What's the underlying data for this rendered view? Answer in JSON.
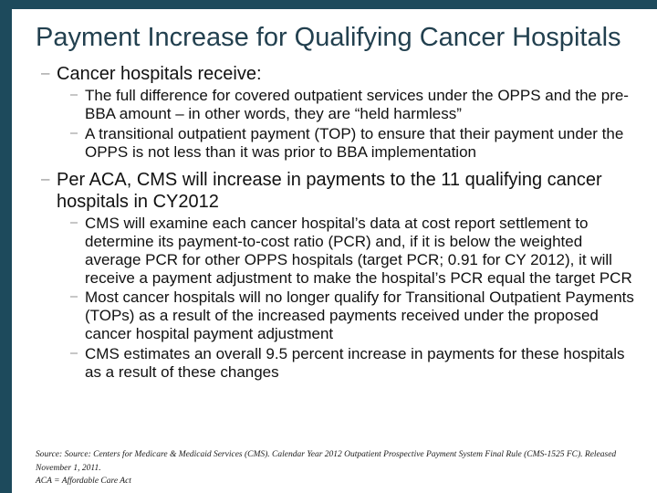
{
  "slide": {
    "title": "Payment Increase for Qualifying Cancer Hospitals",
    "bullet_char": "–",
    "bullets": [
      {
        "level": 1,
        "text": "Cancer hospitals receive:"
      },
      {
        "level": 2,
        "text": "The full difference for covered outpatient services under the OPPS and the pre-BBA amount – in other words, they are “held harmless”"
      },
      {
        "level": 2,
        "text": "A transitional outpatient payment (TOP) to ensure that their payment under the OPPS is not less than it was prior to BBA implementation"
      },
      {
        "level": 1,
        "text": "Per ACA, CMS will increase in payments to the 11 qualifying cancer hospitals in CY2012"
      },
      {
        "level": 2,
        "text": "CMS will examine each cancer hospital’s data at cost report settlement to determine its payment-to-cost ratio (PCR) and, if it is below the weighted average PCR for other OPPS hospitals (target PCR; 0.91 for CY 2012), it will receive a payment adjustment to make the hospital’s PCR equal the target PCR"
      },
      {
        "level": 2,
        "text": "Most cancer hospitals will no longer qualify for Transitional Outpatient Payments (TOPs) as a result of the increased payments received under the proposed cancer hospital payment adjustment"
      },
      {
        "level": 2,
        "text": "CMS estimates an overall 9.5 percent increase in payments for these hospitals as a result of these changes"
      }
    ],
    "footer": {
      "line1": "Source: Source: Centers for Medicare & Medicaid Services (CMS).  Calendar Year 2012 Outpatient Prospective Payment System Final Rule (CMS-1525 FC).  Released November 1, 2011.",
      "line2": "ACA = Affordable Care Act"
    },
    "colors": {
      "border": "#1d4a5c",
      "title": "#22404f",
      "body_text": "#111111",
      "bullet_marker": "#8f8f8f"
    }
  }
}
